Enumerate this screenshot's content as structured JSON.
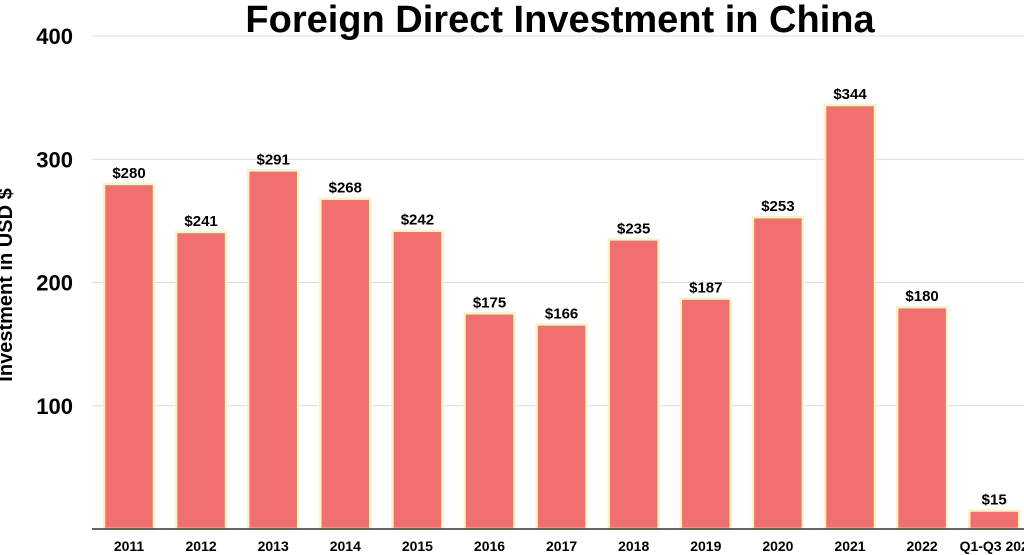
{
  "chart_data": {
    "type": "bar",
    "title": "Foreign Direct Investment in China",
    "ylabel": "Investment in USD $",
    "xlabel": "",
    "categories": [
      "2011",
      "2012",
      "2013",
      "2014",
      "2015",
      "2016",
      "2017",
      "2018",
      "2019",
      "2020",
      "2021",
      "2022",
      "Q1-Q3 202"
    ],
    "values": [
      280,
      241,
      291,
      268,
      242,
      175,
      166,
      235,
      187,
      253,
      344,
      180,
      15
    ],
    "value_labels": [
      "$280",
      "$241",
      "$291",
      "$268",
      "$242",
      "$175",
      "$166",
      "$235",
      "$187",
      "$253",
      "$344",
      "$180",
      "$15"
    ],
    "ylim": [
      0,
      400
    ],
    "yticks": [
      100,
      200,
      300,
      400
    ],
    "ytick_labels": [
      "100",
      "200",
      "300",
      "400"
    ],
    "grid": true,
    "legend": "none",
    "bar_color": "#f07070",
    "bar_outline_color": "#fbf3c4",
    "grid_color": "#dcdcdc",
    "axis_color": "#333333",
    "text_color": "#000000"
  }
}
